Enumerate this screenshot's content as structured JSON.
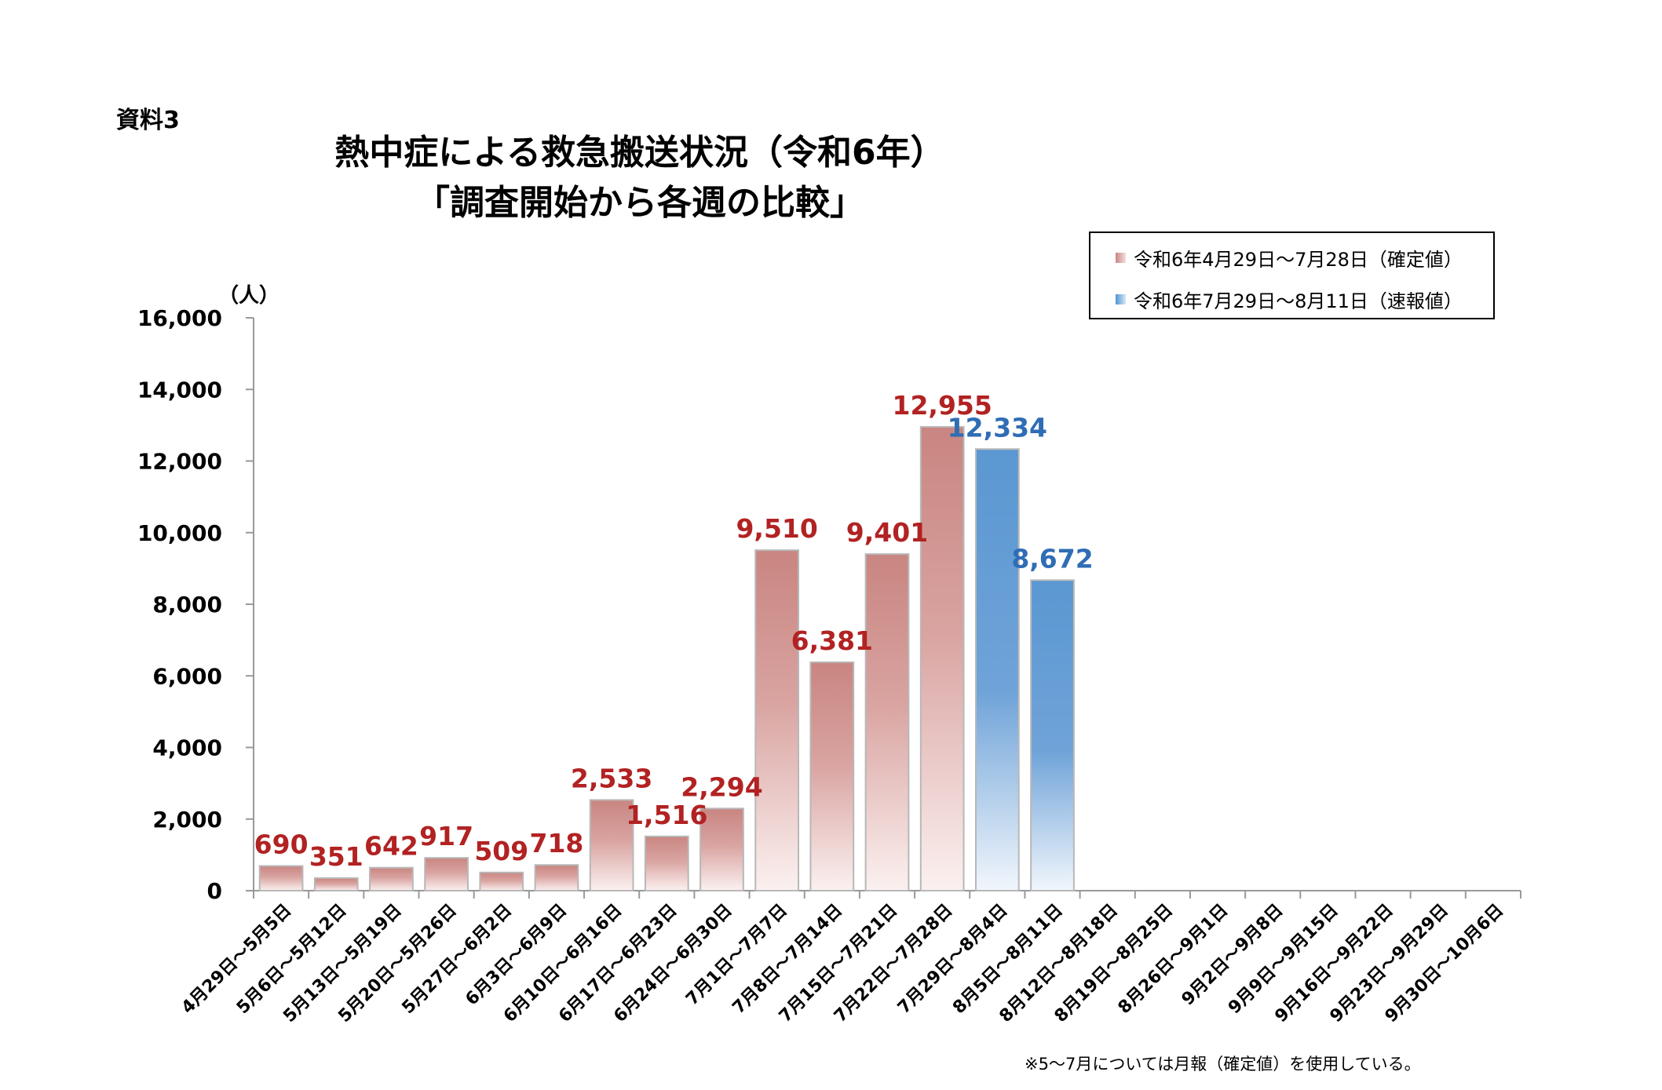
{
  "doc_label": "資料3",
  "title_line1": "熱中症による救急搬送状況（令和6年）",
  "title_line2": "「調査開始から各週の比較」",
  "footnote": "※5～7月については月報（確定値）を使用している。",
  "colors": {
    "confirmed_top": "#c98581",
    "confirmed_bottom": "#fbf1f0",
    "preliminary_top": "#5b97d2",
    "preliminary_bottom": "#f1f6fc",
    "confirmed_label": "#b22222",
    "preliminary_label": "#2f6db5"
  },
  "chart_data": {
    "type": "bar",
    "ylabel": "（人）",
    "ylim": [
      0,
      16000
    ],
    "yticks": [
      "0",
      "2,000",
      "4,000",
      "6,000",
      "8,000",
      "10,000",
      "12,000",
      "14,000",
      "16,000"
    ],
    "grid": false,
    "legend_position": "top-right",
    "categories": [
      "4月29日～5月5日",
      "5月6日～5月12日",
      "5月13日～5月19日",
      "5月20日～5月26日",
      "5月27日～6月2日",
      "6月3日～6月9日",
      "6月10日～6月16日",
      "6月17日～6月23日",
      "6月24日～6月30日",
      "7月1日～7月7日",
      "7月8日～7月14日",
      "7月15日～7月21日",
      "7月22日～7月28日",
      "7月29日～8月4日",
      "8月5日～8月11日",
      "8月12日～8月18日",
      "8月19日～8月25日",
      "8月26日～9月1日",
      "9月2日～9月8日",
      "9月9日～9月15日",
      "9月16日～9月22日",
      "9月23日～9月29日",
      "9月30日～10月6日"
    ],
    "series": [
      {
        "name": "令和6年4月29日～7月28日（確定値）",
        "values": [
          690,
          351,
          642,
          917,
          509,
          718,
          2533,
          1516,
          2294,
          9510,
          6381,
          9401,
          12955,
          null,
          null,
          null,
          null,
          null,
          null,
          null,
          null,
          null,
          null
        ],
        "labels": [
          "690",
          "351",
          "642",
          "917",
          "509",
          "718",
          "2,533",
          "1,516",
          "2,294",
          "9,510",
          "6,381",
          "9,401",
          "12,955",
          null,
          null,
          null,
          null,
          null,
          null,
          null,
          null,
          null,
          null
        ]
      },
      {
        "name": "令和6年7月29日～8月11日（速報値）",
        "values": [
          null,
          null,
          null,
          null,
          null,
          null,
          null,
          null,
          null,
          null,
          null,
          null,
          null,
          12334,
          8672,
          null,
          null,
          null,
          null,
          null,
          null,
          null,
          null
        ],
        "labels": [
          null,
          null,
          null,
          null,
          null,
          null,
          null,
          null,
          null,
          null,
          null,
          null,
          null,
          "12,334",
          "8,672",
          null,
          null,
          null,
          null,
          null,
          null,
          null,
          null
        ]
      }
    ]
  }
}
